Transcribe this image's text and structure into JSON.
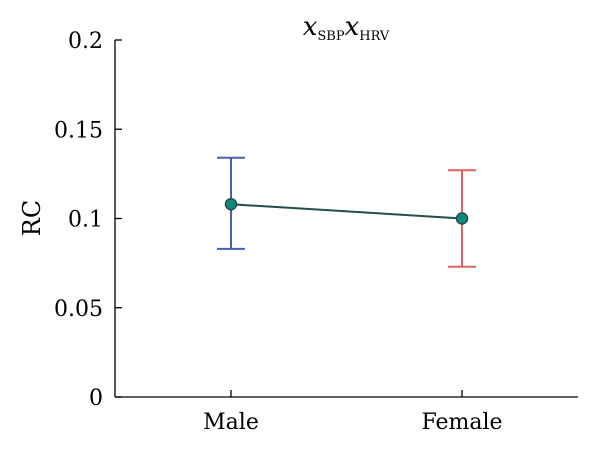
{
  "chart_data": {
    "type": "line",
    "title": {
      "main1": "x",
      "sub1": "SBP",
      "main2": "x",
      "sub2": "HRV"
    },
    "ylabel": "RC",
    "xlabel": "",
    "categories": [
      "Male",
      "Female"
    ],
    "ylim": [
      0,
      0.2
    ],
    "yticks": [
      {
        "value": 0,
        "label": "0"
      },
      {
        "value": 0.05,
        "label": "0.05"
      },
      {
        "value": 0.1,
        "label": "0.1"
      },
      {
        "value": 0.15,
        "label": "0.15"
      },
      {
        "value": 0.2,
        "label": "0.2"
      }
    ],
    "grid": false,
    "series": [
      {
        "values": [
          0.108,
          0.1
        ],
        "error_low": [
          0.083,
          0.073
        ],
        "error_high": [
          0.134,
          0.127
        ],
        "line_color": "#1f4f4a",
        "marker_color": "#138a7c",
        "errorbar_colors": [
          "#4a5fb0",
          "#e06464"
        ]
      }
    ]
  }
}
